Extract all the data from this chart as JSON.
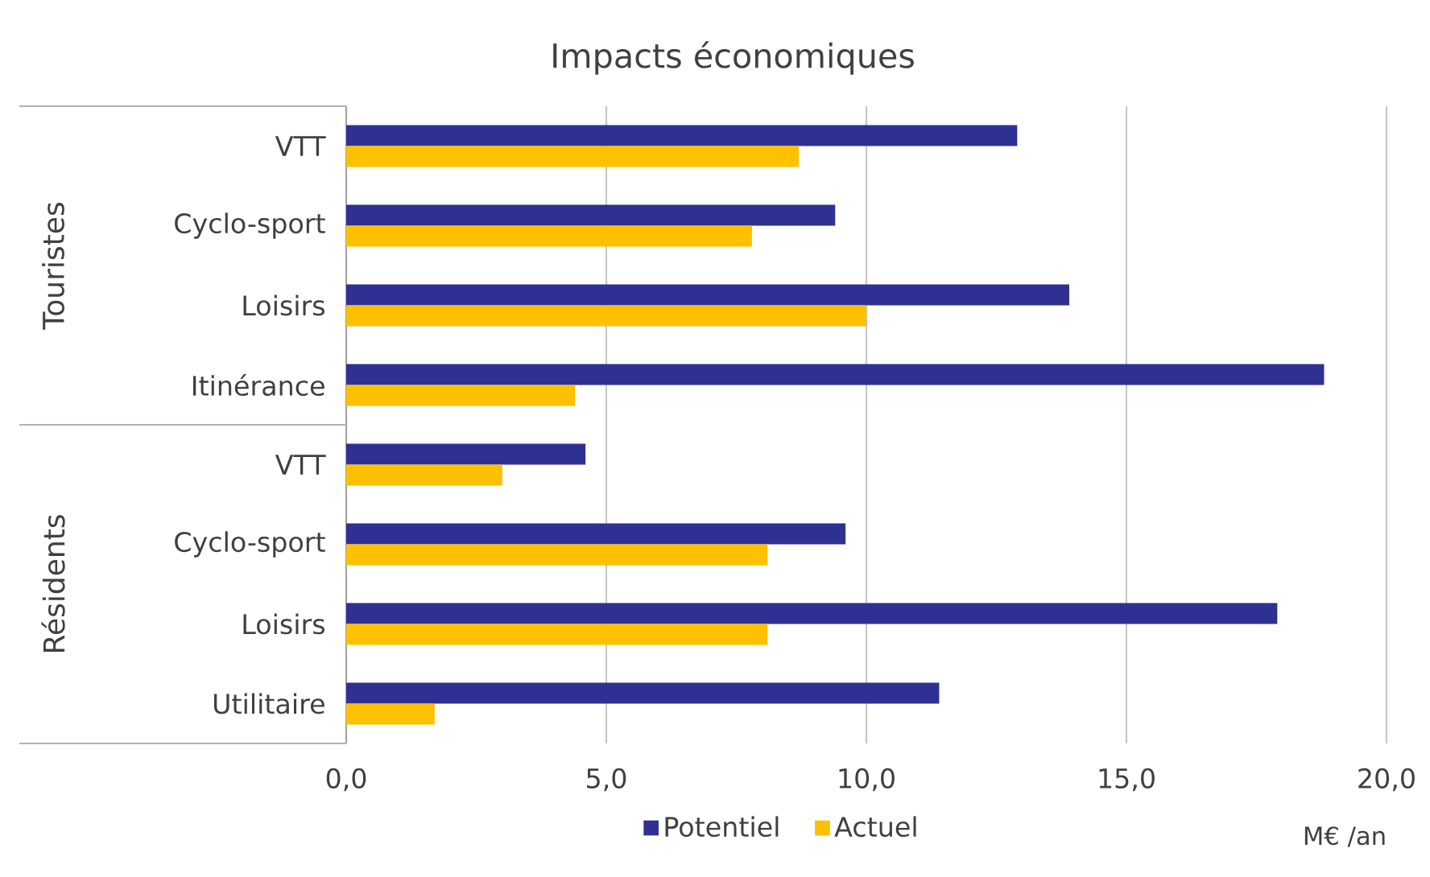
{
  "chart_data": {
    "type": "bar",
    "orientation": "horizontal",
    "title": "Impacts économiques",
    "xlabel": "M€ /an",
    "categories": [
      "VTT",
      "Cyclo-sport",
      "Loisirs",
      "Itinérance",
      "VTT",
      "Cyclo-sport",
      "Loisirs",
      "Utilitaire"
    ],
    "series": [
      {
        "name": "Potentiel",
        "color": "#2e3192",
        "values": [
          12.9,
          9.4,
          13.9,
          18.8,
          4.6,
          9.6,
          17.9,
          11.4
        ]
      },
      {
        "name": "Actuel",
        "color": "#ffc000",
        "values": [
          8.7,
          7.8,
          10.0,
          4.4,
          3.0,
          8.1,
          8.1,
          1.7
        ]
      }
    ],
    "xlim": [
      0,
      20
    ],
    "xticks": [
      {
        "value": 0,
        "label": "0,0"
      },
      {
        "value": 5,
        "label": "5,0"
      },
      {
        "value": 10,
        "label": "10,0"
      },
      {
        "value": 15,
        "label": "15,0"
      },
      {
        "value": 20,
        "label": "20,0"
      }
    ],
    "grid": "x",
    "legend": "bottom",
    "annotations": [
      "Touristes",
      "Résidents"
    ]
  }
}
